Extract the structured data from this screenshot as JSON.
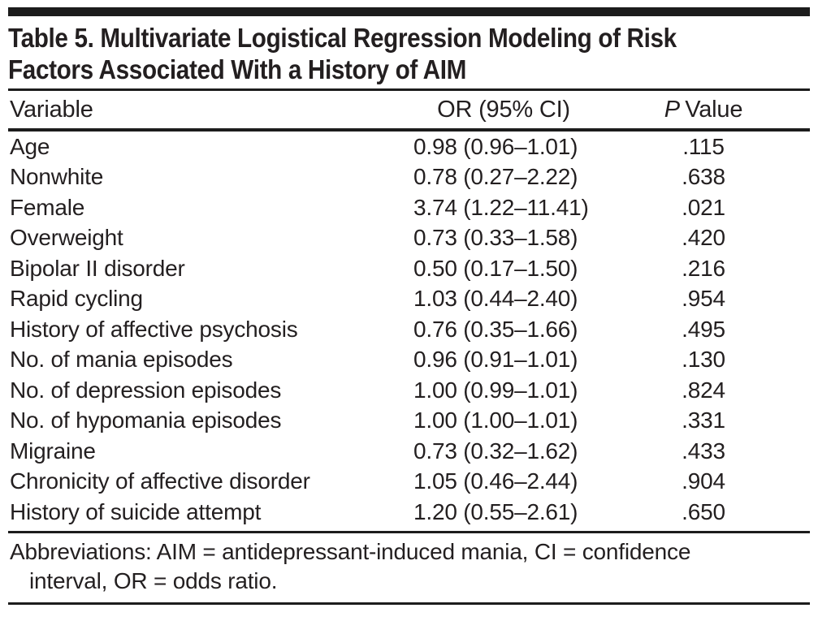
{
  "table": {
    "title_lines": [
      "Table 5. Multivariate Logistical Regression Modeling of Risk",
      "Factors Associated With a History of AIM"
    ],
    "columns": {
      "variable": "Variable",
      "or_ci": "OR (95% CI)",
      "p_italic": "P",
      "p_rest": "Value"
    },
    "rows": [
      {
        "variable": "Age",
        "or_ci": "0.98 (0.96–1.01)",
        "p": ".115"
      },
      {
        "variable": "Nonwhite",
        "or_ci": "0.78 (0.27–2.22)",
        "p": ".638"
      },
      {
        "variable": "Female",
        "or_ci": "3.74 (1.22–11.41)",
        "p": ".021"
      },
      {
        "variable": "Overweight",
        "or_ci": "0.73 (0.33–1.58)",
        "p": ".420"
      },
      {
        "variable": "Bipolar II disorder",
        "or_ci": "0.50 (0.17–1.50)",
        "p": ".216"
      },
      {
        "variable": "Rapid cycling",
        "or_ci": "1.03 (0.44–2.40)",
        "p": ".954"
      },
      {
        "variable": "History of affective psychosis",
        "or_ci": "0.76 (0.35–1.66)",
        "p": ".495"
      },
      {
        "variable": "No. of mania episodes",
        "or_ci": "0.96 (0.91–1.01)",
        "p": ".130"
      },
      {
        "variable": "No. of depression episodes",
        "or_ci": "1.00 (0.99–1.01)",
        "p": ".824"
      },
      {
        "variable": "No. of hypomania episodes",
        "or_ci": "1.00 (1.00–1.01)",
        "p": ".331"
      },
      {
        "variable": "Migraine",
        "or_ci": "0.73 (0.32–1.62)",
        "p": ".433"
      },
      {
        "variable": "Chronicity of affective disorder",
        "or_ci": "1.05 (0.46–2.44)",
        "p": ".904"
      },
      {
        "variable": "History of suicide attempt",
        "or_ci": "1.20 (0.55–2.61)",
        "p": ".650"
      }
    ],
    "footnote_lines": [
      "Abbreviations: AIM = antidepressant-induced mania, CI = confidence",
      "interval, OR = odds ratio."
    ],
    "text_color": "#231f20",
    "rule_color": "#1c1c1c"
  }
}
